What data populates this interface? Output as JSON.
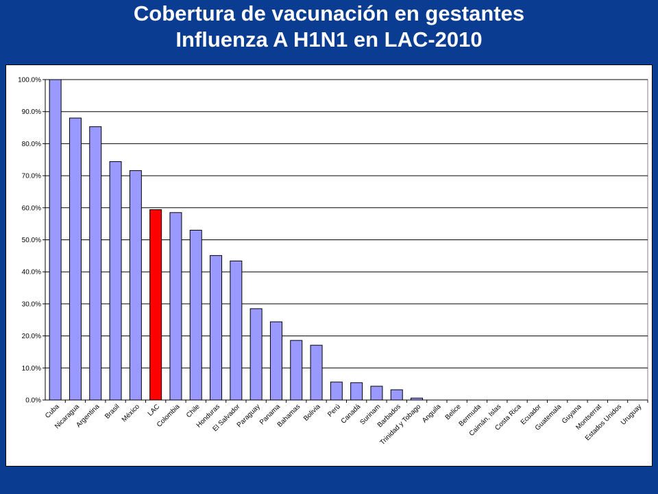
{
  "title": {
    "line1": "Cobertura de vacunación en gestantes",
    "line2": "Influenza A H1N1 en LAC-2010"
  },
  "colors": {
    "background": "#0a3d91",
    "bar": "#9999ff",
    "highlight_bar": "#ff0000",
    "panel": "#ffffff",
    "gridline": "#000000"
  },
  "chart_data": {
    "type": "bar",
    "title": "",
    "xlabel": "",
    "ylabel": "",
    "ylim": [
      0,
      1.0
    ],
    "y_ticks": [
      "0.0%",
      "10.0%",
      "20.0%",
      "30.0%",
      "40.0%",
      "50.0%",
      "60.0%",
      "70.0%",
      "80.0%",
      "90.0%",
      "100.0%"
    ],
    "grid": true,
    "legend": "none",
    "highlight_category": "LAC",
    "categories": [
      "Cuba",
      "Nicaragua",
      "Argentina",
      "Brasil",
      "México",
      "LAC",
      "Colombia",
      "Chile",
      "Honduras",
      "El Salvador",
      "Paraguay",
      "Panama",
      "Bahamas",
      "Bolivia",
      "Perú",
      "Canadá",
      "Surinam",
      "Barbados",
      "Trinidad y Tobago",
      "Anguila",
      "Belice",
      "Bermuda",
      "Caimán, Islas",
      "Costa Rica",
      "Ecuador",
      "Guatemala",
      "Guyana",
      "Montserrat",
      "Estados Unidos",
      "Uruguay"
    ],
    "values": [
      1.0,
      0.88,
      0.853,
      0.744,
      0.716,
      0.594,
      0.585,
      0.53,
      0.451,
      0.434,
      0.285,
      0.244,
      0.186,
      0.171,
      0.056,
      0.054,
      0.043,
      0.032,
      0.006,
      0,
      0,
      0,
      0,
      0,
      0,
      0,
      0,
      0,
      0,
      0
    ]
  }
}
